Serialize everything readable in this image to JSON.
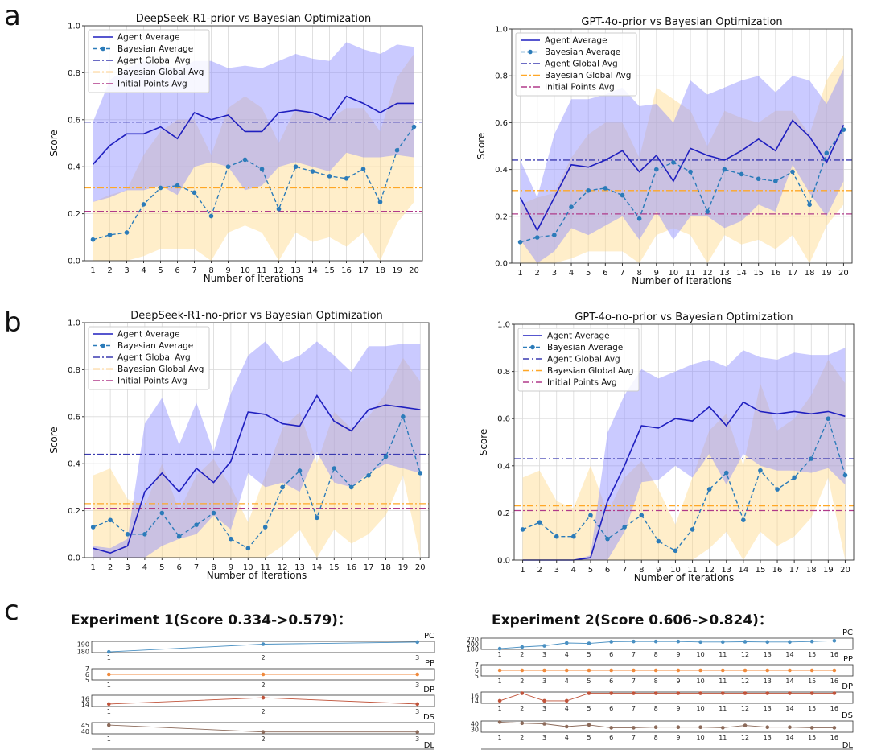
{
  "panels": {
    "a": "a",
    "b": "b",
    "c": "c"
  },
  "legend": [
    "Agent Average",
    "Bayesian Average",
    "Agent Global Avg",
    "Bayesian Global Avg",
    "Initial Points Avg"
  ],
  "colors": {
    "agent": "#1f1fbf",
    "agent_band": "#8a8aff",
    "bayes": "#2b7bb9",
    "bayes_band": "#ffd98a",
    "agent_global": "#3a3ab0",
    "bayes_global": "#ffa726",
    "initial": "#b03a8a",
    "strip_pc": "#4a90c2",
    "strip_pp": "#f08a3c",
    "strip_dp": "#c0533a",
    "strip_ds": "#8b6a5a"
  },
  "chart_data": [
    {
      "id": "a1",
      "type": "line",
      "title": "DeepSeek-R1-prior vs Bayesian Optimization",
      "xlabel": "Number of Iterations",
      "ylabel": "Score",
      "ylim": [
        0,
        1.0
      ],
      "yticks": [
        "0.0",
        "0.2",
        "0.4",
        "0.6",
        "0.8",
        "1.0"
      ],
      "x": [
        1,
        2,
        3,
        4,
        5,
        6,
        7,
        8,
        9,
        10,
        11,
        12,
        13,
        14,
        15,
        16,
        17,
        18,
        19,
        20
      ],
      "agent": [
        0.41,
        0.49,
        0.54,
        0.54,
        0.57,
        0.52,
        0.63,
        0.6,
        0.62,
        0.55,
        0.55,
        0.63,
        0.64,
        0.63,
        0.6,
        0.7,
        0.67,
        0.63,
        0.67,
        0.67
      ],
      "agent_upper": [
        0.59,
        0.77,
        0.82,
        0.85,
        0.83,
        0.82,
        0.85,
        0.85,
        0.82,
        0.83,
        0.82,
        0.85,
        0.88,
        0.86,
        0.85,
        0.93,
        0.9,
        0.88,
        0.92,
        0.91
      ],
      "agent_lower": [
        0.25,
        0.27,
        0.3,
        0.3,
        0.32,
        0.28,
        0.4,
        0.42,
        0.4,
        0.3,
        0.32,
        0.4,
        0.42,
        0.4,
        0.38,
        0.46,
        0.44,
        0.44,
        0.45,
        0.44
      ],
      "bayes": [
        0.09,
        0.11,
        0.12,
        0.24,
        0.31,
        0.32,
        0.29,
        0.19,
        0.4,
        0.43,
        0.39,
        0.22,
        0.4,
        0.38,
        0.36,
        0.35,
        0.39,
        0.25,
        0.47,
        0.57
      ],
      "bayes_upper": [
        0.25,
        0.28,
        0.3,
        0.45,
        0.55,
        0.6,
        0.6,
        0.45,
        0.65,
        0.7,
        0.65,
        0.5,
        0.65,
        0.62,
        0.6,
        0.65,
        0.65,
        0.55,
        0.78,
        0.88
      ],
      "bayes_lower": [
        0.0,
        0.0,
        0.0,
        0.02,
        0.05,
        0.05,
        0.05,
        0.0,
        0.12,
        0.15,
        0.12,
        0.0,
        0.12,
        0.08,
        0.1,
        0.06,
        0.12,
        0.0,
        0.16,
        0.25
      ],
      "agent_global": 0.59,
      "bayes_global": 0.31,
      "initial_avg": 0.21
    },
    {
      "id": "a2",
      "type": "line",
      "title": "GPT-4o-prior vs Bayesian Optimization",
      "xlabel": "Number of Iterations",
      "ylabel": "Score",
      "ylim": [
        0,
        1.0
      ],
      "yticks": [
        "0.0",
        "0.2",
        "0.4",
        "0.6",
        "0.8",
        "1.0"
      ],
      "x": [
        1,
        2,
        3,
        4,
        5,
        6,
        7,
        8,
        9,
        10,
        11,
        12,
        13,
        14,
        15,
        16,
        17,
        18,
        19,
        20
      ],
      "agent": [
        0.28,
        0.14,
        0.28,
        0.42,
        0.41,
        0.44,
        0.48,
        0.39,
        0.46,
        0.35,
        0.49,
        0.46,
        0.44,
        0.48,
        0.53,
        0.48,
        0.61,
        0.54,
        0.43,
        0.59
      ],
      "agent_upper": [
        0.44,
        0.28,
        0.55,
        0.7,
        0.7,
        0.72,
        0.75,
        0.67,
        0.68,
        0.6,
        0.78,
        0.72,
        0.75,
        0.78,
        0.8,
        0.73,
        0.8,
        0.78,
        0.68,
        0.83
      ],
      "agent_lower": [
        0.1,
        0.0,
        0.05,
        0.15,
        0.12,
        0.16,
        0.2,
        0.1,
        0.22,
        0.1,
        0.2,
        0.2,
        0.15,
        0.18,
        0.25,
        0.22,
        0.42,
        0.3,
        0.2,
        0.35
      ],
      "bayes": [
        0.09,
        0.11,
        0.12,
        0.24,
        0.31,
        0.32,
        0.29,
        0.19,
        0.4,
        0.43,
        0.39,
        0.22,
        0.4,
        0.38,
        0.36,
        0.35,
        0.39,
        0.25,
        0.47,
        0.57
      ],
      "bayes_upper": [
        0.25,
        0.28,
        0.3,
        0.45,
        0.55,
        0.6,
        0.6,
        0.45,
        0.75,
        0.7,
        0.65,
        0.5,
        0.65,
        0.62,
        0.6,
        0.65,
        0.65,
        0.55,
        0.78,
        0.89
      ],
      "bayes_lower": [
        0.0,
        0.0,
        0.0,
        0.02,
        0.05,
        0.05,
        0.05,
        0.0,
        0.12,
        0.15,
        0.12,
        0.0,
        0.12,
        0.08,
        0.1,
        0.06,
        0.12,
        0.0,
        0.16,
        0.25
      ],
      "agent_global": 0.44,
      "bayes_global": 0.31,
      "initial_avg": 0.21
    },
    {
      "id": "b1",
      "type": "line",
      "title": "DeepSeek-R1-no-prior vs Bayesian Optimization",
      "xlabel": "Number of Iterations",
      "ylabel": "Score",
      "ylim": [
        0,
        1.0
      ],
      "yticks": [
        "0.0",
        "0.2",
        "0.4",
        "0.6",
        "0.8",
        "1.0"
      ],
      "x": [
        1,
        2,
        3,
        4,
        5,
        6,
        7,
        8,
        9,
        10,
        11,
        12,
        13,
        14,
        15,
        16,
        17,
        18,
        19,
        20
      ],
      "agent": [
        0.04,
        0.02,
        0.05,
        0.28,
        0.36,
        0.28,
        0.38,
        0.32,
        0.41,
        0.62,
        0.61,
        0.57,
        0.56,
        0.69,
        0.58,
        0.54,
        0.63,
        0.65,
        0.64,
        0.63
      ],
      "agent_upper": [
        0.05,
        0.04,
        0.08,
        0.57,
        0.68,
        0.48,
        0.66,
        0.45,
        0.7,
        0.86,
        0.92,
        0.83,
        0.86,
        0.92,
        0.86,
        0.79,
        0.9,
        0.9,
        0.91,
        0.91
      ],
      "agent_lower": [
        0.0,
        0.0,
        0.0,
        0.0,
        0.05,
        0.08,
        0.1,
        0.18,
        0.12,
        0.36,
        0.3,
        0.32,
        0.28,
        0.45,
        0.32,
        0.3,
        0.36,
        0.4,
        0.38,
        0.36
      ],
      "bayes": [
        0.13,
        0.16,
        0.1,
        0.1,
        0.19,
        0.09,
        0.14,
        0.19,
        0.08,
        0.04,
        0.13,
        0.3,
        0.37,
        0.17,
        0.38,
        0.3,
        0.35,
        0.43,
        0.6,
        0.36
      ],
      "bayes_upper": [
        0.35,
        0.38,
        0.25,
        0.22,
        0.4,
        0.2,
        0.35,
        0.42,
        0.3,
        0.15,
        0.35,
        0.55,
        0.62,
        0.4,
        0.62,
        0.55,
        0.6,
        0.7,
        0.85,
        0.75
      ],
      "bayes_lower": [
        0.0,
        0.0,
        0.0,
        0.0,
        0.0,
        0.0,
        0.0,
        0.0,
        0.0,
        0.0,
        0.0,
        0.05,
        0.12,
        0.0,
        0.12,
        0.06,
        0.1,
        0.18,
        0.35,
        0.0
      ],
      "agent_global": 0.44,
      "bayes_global": 0.23,
      "initial_avg": 0.21
    },
    {
      "id": "b2",
      "type": "line",
      "title": "GPT-4o-no-prior vs Bayesian Optimization",
      "xlabel": "Number of Iterations",
      "ylabel": "Score",
      "ylim": [
        0,
        1.0
      ],
      "yticks": [
        "0.0",
        "0.2",
        "0.4",
        "0.6",
        "0.8",
        "1.0"
      ],
      "x": [
        1,
        2,
        3,
        4,
        5,
        6,
        7,
        8,
        9,
        10,
        11,
        12,
        13,
        14,
        15,
        16,
        17,
        18,
        19,
        20
      ],
      "agent": [
        0.0,
        0.0,
        0.0,
        0.0,
        0.01,
        0.25,
        0.4,
        0.57,
        0.56,
        0.6,
        0.59,
        0.65,
        0.57,
        0.67,
        0.63,
        0.62,
        0.63,
        0.62,
        0.63,
        0.61
      ],
      "agent_upper": [
        0.0,
        0.0,
        0.0,
        0.0,
        0.02,
        0.54,
        0.7,
        0.81,
        0.77,
        0.8,
        0.83,
        0.85,
        0.82,
        0.89,
        0.86,
        0.85,
        0.88,
        0.87,
        0.87,
        0.9
      ],
      "agent_lower": [
        0.0,
        0.0,
        0.0,
        0.0,
        0.0,
        0.0,
        0.12,
        0.33,
        0.34,
        0.4,
        0.35,
        0.45,
        0.32,
        0.45,
        0.4,
        0.38,
        0.38,
        0.37,
        0.39,
        0.32
      ],
      "bayes": [
        0.13,
        0.16,
        0.1,
        0.1,
        0.19,
        0.09,
        0.14,
        0.19,
        0.08,
        0.04,
        0.13,
        0.3,
        0.37,
        0.17,
        0.38,
        0.3,
        0.35,
        0.43,
        0.6,
        0.36
      ],
      "bayes_upper": [
        0.35,
        0.38,
        0.25,
        0.22,
        0.4,
        0.2,
        0.35,
        0.42,
        0.3,
        0.15,
        0.35,
        0.55,
        0.62,
        0.4,
        0.75,
        0.55,
        0.6,
        0.7,
        0.85,
        0.75
      ],
      "bayes_lower": [
        0.0,
        0.0,
        0.0,
        0.0,
        0.0,
        0.0,
        0.0,
        0.0,
        0.0,
        0.0,
        0.0,
        0.05,
        0.12,
        0.0,
        0.12,
        0.06,
        0.1,
        0.18,
        0.35,
        0.0
      ],
      "agent_global": 0.43,
      "bayes_global": 0.23,
      "initial_avg": 0.21
    }
  ],
  "experiments": [
    {
      "title": "Experiment 1(Score 0.334->0.579)：",
      "x": [
        1,
        2,
        3
      ],
      "strips": [
        {
          "name": "PC",
          "yticks": [
            "190",
            "180"
          ],
          "ymin": 178,
          "ymax": 194,
          "values": [
            179,
            190,
            193
          ],
          "color": "strip_pc"
        },
        {
          "name": "PP",
          "yticks": [
            "7",
            "6",
            "5"
          ],
          "ymin": 5,
          "ymax": 7,
          "values": [
            6,
            6,
            6
          ],
          "color": "strip_pp"
        },
        {
          "name": "DP",
          "yticks": [
            "16",
            "14"
          ],
          "ymin": 13,
          "ymax": 17.5,
          "values": [
            14,
            16.5,
            14
          ],
          "color": "strip_dp"
        },
        {
          "name": "DS",
          "yticks": [
            "45",
            "40"
          ],
          "ymin": 38,
          "ymax": 47,
          "values": [
            45,
            39.5,
            39.5
          ],
          "color": "strip_ds"
        }
      ],
      "last_label": "DL"
    },
    {
      "title": "Experiment 2(Score 0.606->0.824)：",
      "x": [
        1,
        2,
        3,
        4,
        5,
        6,
        7,
        8,
        9,
        10,
        11,
        12,
        13,
        14,
        15,
        16
      ],
      "strips": [
        {
          "name": "PC",
          "yticks": [
            "220",
            "200",
            "180"
          ],
          "ymin": 178,
          "ymax": 225,
          "values": [
            181,
            188,
            193,
            205,
            203,
            210,
            211,
            211,
            211,
            209,
            209,
            210,
            209,
            209,
            211,
            214
          ],
          "color": "strip_pc"
        },
        {
          "name": "PP",
          "yticks": [
            "7",
            "6",
            "5"
          ],
          "ymin": 5,
          "ymax": 7,
          "values": [
            6,
            6,
            6,
            6,
            6,
            6,
            6,
            6,
            6,
            6,
            6,
            6,
            6,
            6,
            6,
            6
          ],
          "color": "strip_pp"
        },
        {
          "name": "DP",
          "yticks": [
            "16",
            "14"
          ],
          "ymin": 13,
          "ymax": 17.5,
          "values": [
            14,
            17,
            14,
            14,
            17,
            17,
            17,
            17,
            17,
            17,
            17,
            17,
            17,
            17,
            17,
            17
          ],
          "color": "strip_dp"
        },
        {
          "name": "DS",
          "yticks": [
            "40",
            "30"
          ],
          "ymin": 25,
          "ymax": 45,
          "values": [
            43,
            41,
            40,
            35,
            38,
            33,
            33,
            34,
            34,
            34,
            33,
            37,
            34,
            34,
            33,
            33
          ],
          "color": "strip_ds"
        }
      ],
      "last_label": "DL"
    }
  ]
}
